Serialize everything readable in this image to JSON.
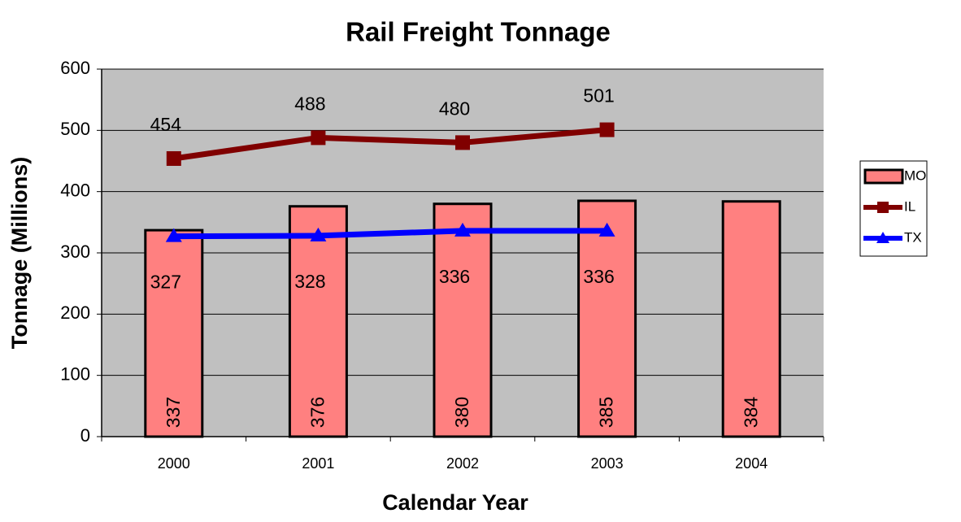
{
  "chart_data": {
    "type": "bar",
    "title": "Rail Freight Tonnage",
    "x_label": "Calendar Year",
    "y_label": "Tonnage (Millions)",
    "categories": [
      "2000",
      "2001",
      "2002",
      "2003",
      "2004"
    ],
    "series": [
      {
        "name": "MO",
        "type": "bar",
        "color": "#ff8080",
        "values": [
          337,
          376,
          380,
          385,
          384
        ]
      },
      {
        "name": "IL",
        "type": "line",
        "color": "#800000",
        "marker": "square",
        "values": [
          454,
          488,
          480,
          501,
          null
        ]
      },
      {
        "name": "TX",
        "type": "line",
        "color": "#0000ff",
        "marker": "triangle",
        "values": [
          327,
          328,
          336,
          336,
          null
        ]
      }
    ],
    "ylim": [
      0,
      600
    ],
    "yticks": [
      0,
      100,
      200,
      300,
      400,
      500,
      600
    ],
    "grid": true,
    "legend": "right"
  }
}
